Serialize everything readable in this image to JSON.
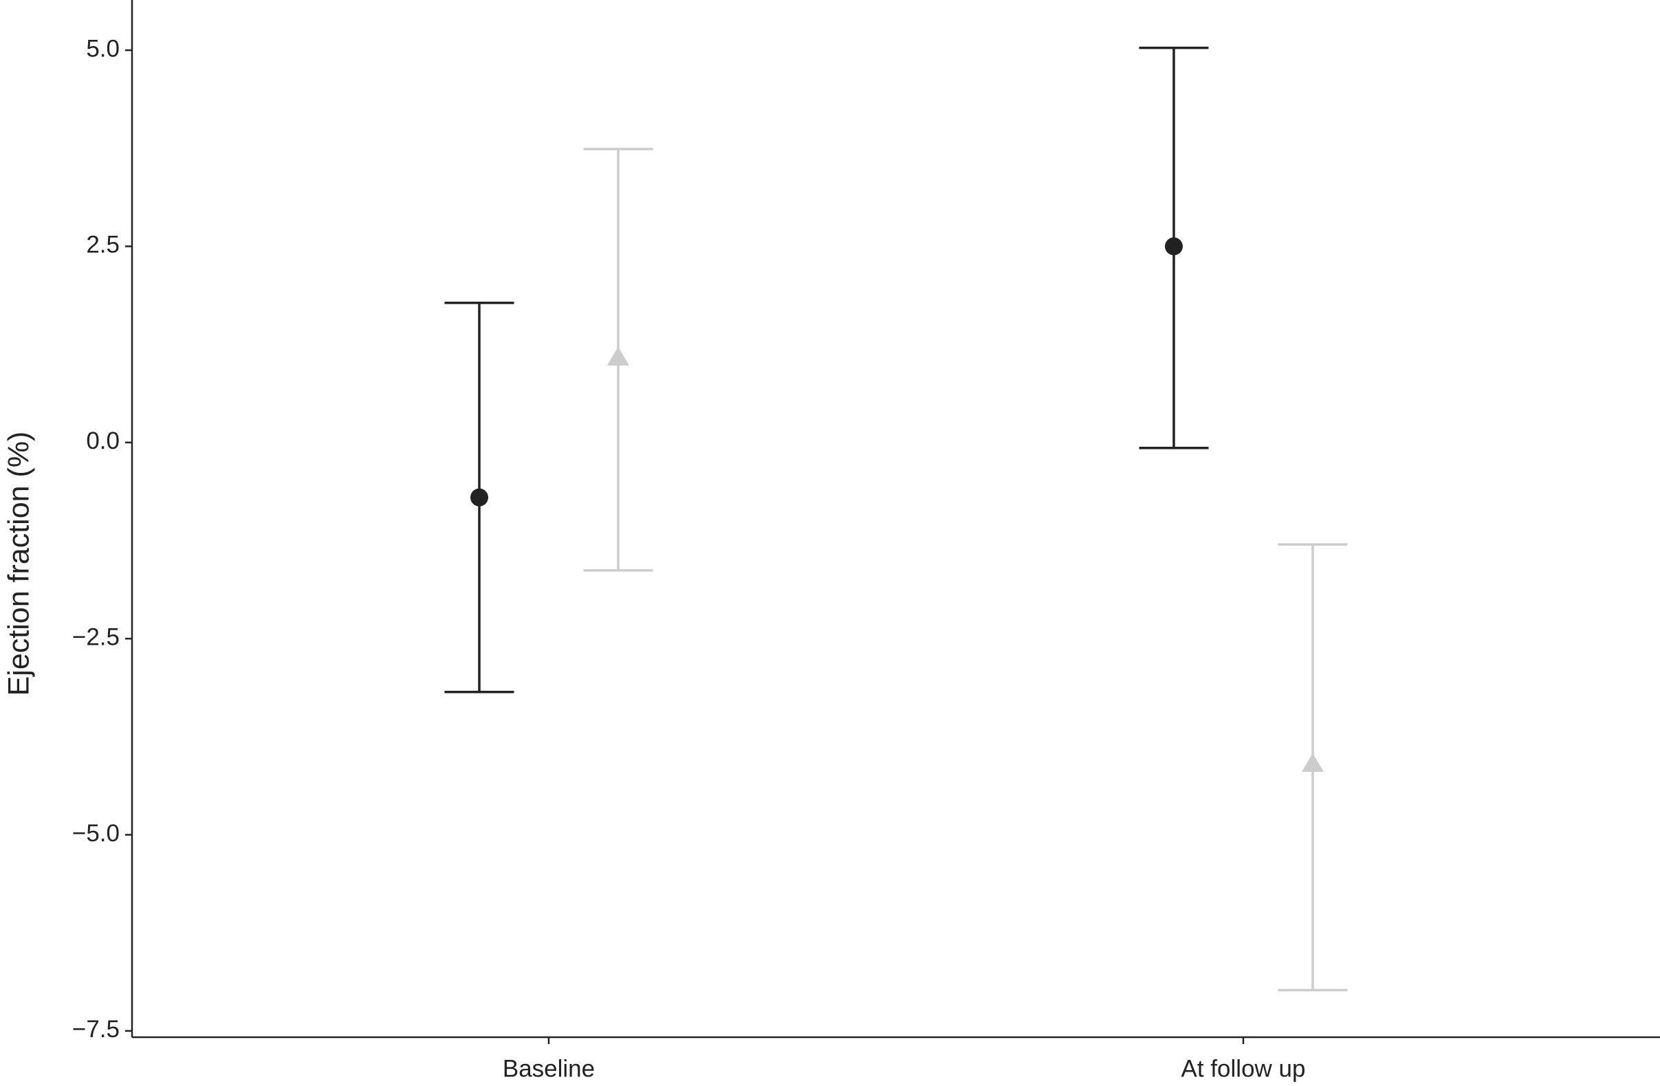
{
  "chart_data": {
    "type": "errorbar",
    "ylabel": "Ejection fraction (%)",
    "categories": [
      "Baseline",
      "At follow up"
    ],
    "series": [
      {
        "color": "#222222",
        "marker": "circle",
        "values": [
          -0.7,
          2.5
        ],
        "lower": [
          -3.18,
          -0.07
        ],
        "upper": [
          1.78,
          5.03
        ]
      },
      {
        "color": "#cccccc",
        "marker": "triangle",
        "values": [
          1.08,
          -4.1
        ],
        "lower": [
          -1.63,
          -6.98
        ],
        "upper": [
          3.74,
          -1.3
        ]
      }
    ],
    "ylim": [
      -7.58,
      5.64
    ],
    "yticks": [
      {
        "value": 5,
        "label": "5.0"
      },
      {
        "value": 2.5,
        "label": "2.5"
      },
      {
        "value": 0,
        "label": "0.0"
      },
      {
        "value": -2.5,
        "label": "−2.5"
      },
      {
        "value": -5,
        "label": "−5.0"
      },
      {
        "value": -7.5,
        "label": "−7.5"
      }
    ]
  }
}
